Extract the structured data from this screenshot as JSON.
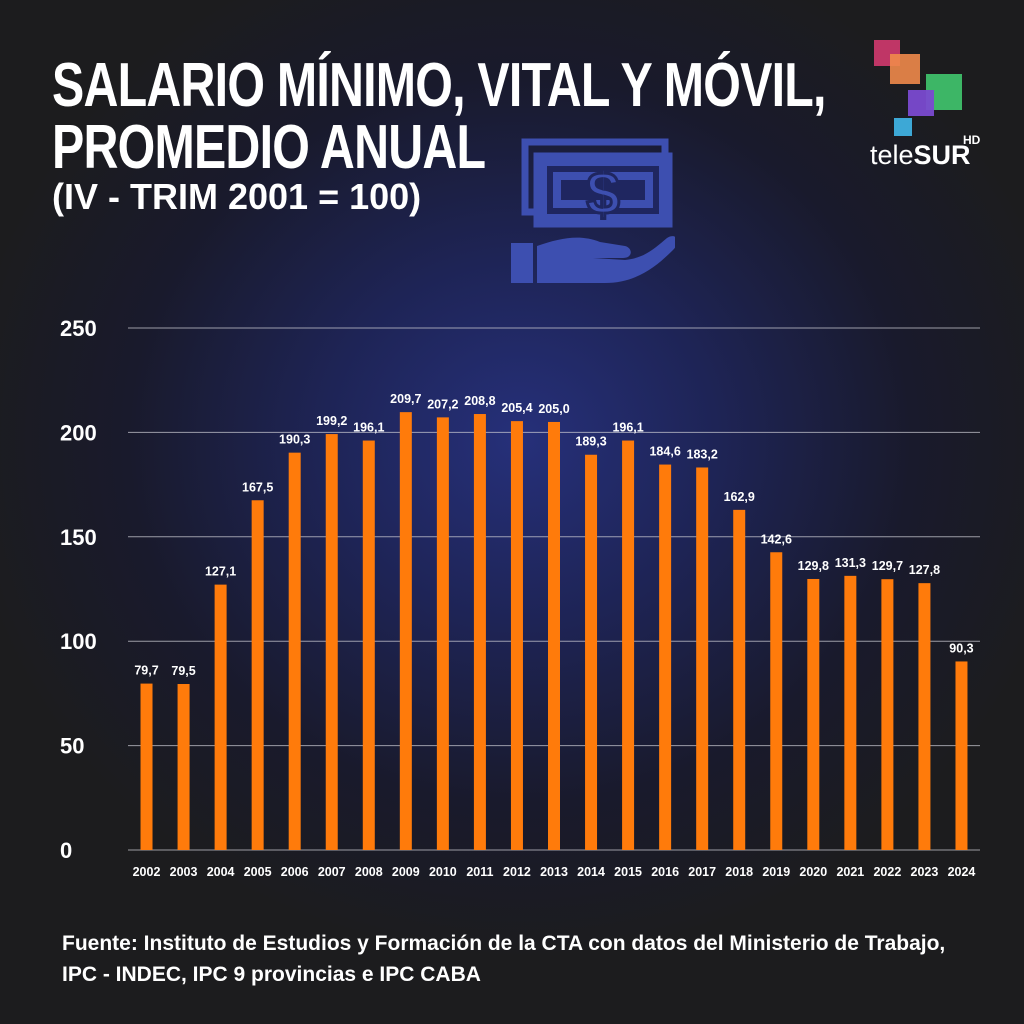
{
  "header": {
    "title_line1": "SALARIO MÍNIMO, VITAL Y MÓVIL,",
    "title_line2": "PROMEDIO ANUAL",
    "subtitle": "(IV - TRIM 2001 = 100)"
  },
  "logo": {
    "brand_thin": "tele",
    "brand_bold": "SUR",
    "hd": "HD",
    "icon": "telesur-logo-icon"
  },
  "icons": {
    "money": "money-hand-icon"
  },
  "source": "Fuente: Instituto de Estudios y Formación de la CTA con datos del Ministerio de Trabajo, IPC - INDEC, IPC 9 provincias e IPC CABA",
  "colors": {
    "bar": "#ff7b0b",
    "text": "#ffffff",
    "grid": "#c8c8d0",
    "accent_icon": "#3d4fb0"
  },
  "chart_data": {
    "type": "bar",
    "categories": [
      "2002",
      "2003",
      "2004",
      "2005",
      "2006",
      "2007",
      "2008",
      "2009",
      "2010",
      "2011",
      "2012",
      "2013",
      "2014",
      "2015",
      "2016",
      "2017",
      "2018",
      "2019",
      "2020",
      "2021",
      "2022",
      "2023",
      "2024"
    ],
    "values": [
      79.7,
      79.5,
      127.1,
      167.5,
      190.3,
      199.2,
      196.1,
      209.7,
      207.2,
      208.8,
      205.4,
      205.0,
      189.3,
      196.1,
      184.6,
      183.2,
      162.9,
      142.6,
      129.8,
      131.3,
      129.7,
      127.8,
      90.3
    ],
    "value_labels": [
      "79,7",
      "79,5",
      "127,1",
      "167,5",
      "190,3",
      "199,2",
      "196,1",
      "209,7",
      "207,2",
      "208,8",
      "205,4",
      "205,0",
      "189,3",
      "196,1",
      "184,6",
      "183,2",
      "162,9",
      "142,6",
      "129,8",
      "131,3",
      "129,7",
      "127,8",
      "90,3"
    ],
    "yticks": [
      0,
      50,
      100,
      150,
      200,
      250
    ],
    "ylim": [
      0,
      250
    ],
    "grid": true,
    "legend": "none",
    "title": "SALARIO MÍNIMO, VITAL Y MÓVIL, PROMEDIO ANUAL",
    "subtitle": "(IV - TRIM 2001 = 100)",
    "xlabel": "",
    "ylabel": ""
  }
}
